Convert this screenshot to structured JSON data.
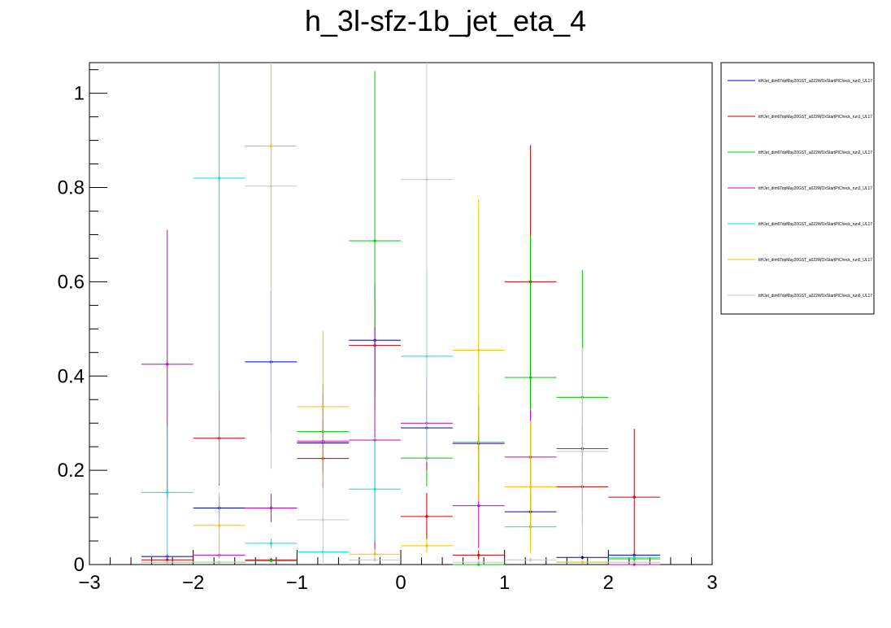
{
  "chart_data": {
    "type": "histogram-errorbars",
    "title": "h_3l-sfz-1b_jet_eta_4",
    "xlabel": "",
    "ylabel": "",
    "xlim": [
      -3,
      3
    ],
    "ylim": [
      0,
      1.065
    ],
    "x_ticks": [
      -3,
      -2,
      -1,
      0,
      1,
      2,
      3
    ],
    "x_tick_labels": [
      "−3",
      "−2",
      "−1",
      "0",
      "1",
      "2",
      "3"
    ],
    "y_ticks": [
      0,
      0.2,
      0.4,
      0.6,
      0.8,
      1
    ],
    "y_tick_labels": [
      "0",
      "0.2",
      "0.4",
      "0.6",
      "0.8",
      "1"
    ],
    "legend_position": "top-right, outside plot",
    "bin_edges": [
      -2.5,
      -2.0,
      -1.5,
      -1.0,
      -0.5,
      0.0,
      0.5,
      1.0,
      1.5,
      2.0,
      2.5
    ],
    "series": [
      {
        "name": "ttHJet_dim6TopMay20GST_a022WOxStartPtCheck_run0_UL17",
        "color": "#0000cc",
        "values": [
          0.017,
          0.12,
          0.43,
          0.258,
          0.476,
          0.29,
          0.257,
          0.112,
          0.015,
          0.02
        ],
        "errors": [
          0.005,
          0.025,
          0.15,
          0.05,
          0.12,
          0.08,
          0.08,
          0.03,
          0.004,
          0.005
        ]
      },
      {
        "name": "ttHJet_dim6TopMay20GST_a022WOxStartPtCheck_run1_UL17",
        "color": "#cc0000",
        "values": [
          0.01,
          0.268,
          0.01,
          0.225,
          0.465,
          0.102,
          0.02,
          0.6,
          0.165,
          0.143
        ],
        "errors": [
          0.004,
          0.1,
          0.004,
          0.06,
          0.1,
          0.05,
          0.01,
          0.29,
          0.05,
          0.145
        ]
      },
      {
        "name": "ttHJet_dim6TopMay20GST_a022WOxStartPtCheck_run2_UL17",
        "color": "#00cc00",
        "values": [
          0.005,
          0.005,
          0.008,
          0.282,
          0.687,
          0.226,
          0.0,
          0.397,
          0.355,
          0.012
        ],
        "errors": [
          0.003,
          0.003,
          0.003,
          0.1,
          0.36,
          0.06,
          0.003,
          0.3,
          0.27,
          0.004
        ]
      },
      {
        "name": "ttHJet_dim6TopMay20GST_a022WOxStartPtCheck_run3_UL17",
        "color": "#cc00cc",
        "values": [
          0.425,
          0.02,
          0.12,
          0.262,
          0.264,
          0.3,
          0.125,
          0.228,
          0.246,
          0.0
        ],
        "errors": [
          0.285,
          0.005,
          0.03,
          0.1,
          0.24,
          0.1,
          0.09,
          0.1,
          0.05,
          0.002
        ]
      },
      {
        "name": "ttHJet_dim6TopMay20GST_a022WOxStartPtCheck_run4_UL17",
        "color": "#00e5e5",
        "values": [
          0.153,
          0.82,
          0.045,
          0.027,
          0.16,
          0.442,
          0.26,
          0.08,
          0.005,
          0.015
        ],
        "errors": [
          0.14,
          0.65,
          0.01,
          0.012,
          0.11,
          0.18,
          0.1,
          0.03,
          0.003,
          0.004
        ]
      },
      {
        "name": "ttHJet_dim6TopMay20GST_a022WOxStartPtCheck_run5_UL17",
        "color": "#f2c200",
        "values": [
          0.005,
          0.083,
          0.888,
          0.335,
          0.022,
          0.04,
          0.455,
          0.165,
          0.005,
          0.005
        ],
        "errors": [
          0.003,
          0.07,
          0.3,
          0.16,
          0.01,
          0.015,
          0.32,
          0.14,
          0.003,
          0.003
        ]
      },
      {
        "name": "ttHJet_dim6TopMay20GST_a022WOxStartPtCheck_run6_UL17",
        "color": "#c8c8c8",
        "values": [
          0.005,
          0.005,
          0.803,
          0.095,
          0.01,
          0.817,
          0.005,
          0.01,
          0.24,
          0.005
        ],
        "errors": [
          0.003,
          0.003,
          0.6,
          0.1,
          0.005,
          0.6,
          0.003,
          0.005,
          0.22,
          0.003
        ]
      }
    ]
  }
}
